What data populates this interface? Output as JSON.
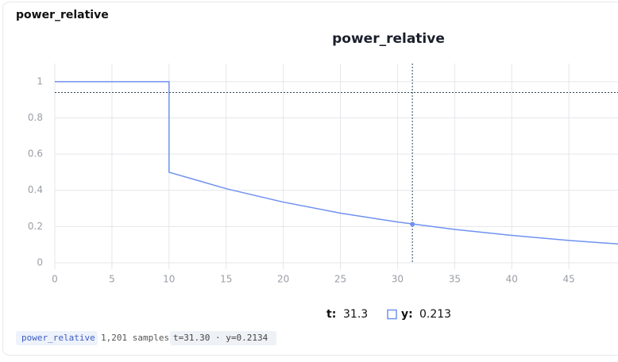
{
  "panel_title": "power_relative",
  "chart_data": {
    "type": "line",
    "title": "power_relative",
    "x": [
      0,
      10,
      10,
      15,
      20,
      25,
      30,
      35,
      40,
      45,
      49.3
    ],
    "series": [
      {
        "name": "y",
        "color": "#7092f0",
        "values": [
          1,
          1,
          0.5,
          0.409,
          0.335,
          0.274,
          0.225,
          0.184,
          0.151,
          0.123,
          0.104
        ]
      }
    ],
    "xlim": [
      0,
      49.3
    ],
    "xticks": [
      0,
      5,
      10,
      15,
      20,
      25,
      30,
      35,
      40,
      45
    ],
    "ylim": [
      0,
      1.1
    ],
    "yticks": [
      0,
      0.2,
      0.4,
      0.6,
      0.8,
      1
    ],
    "grid": true,
    "cursor": {
      "x": 31.3,
      "y": 0.94
    },
    "point": {
      "x": 31.3,
      "y": 0.213
    }
  },
  "readout": {
    "t_label": "t:",
    "t_value": "31.3",
    "y_label": "y:",
    "y_value": "0.213"
  },
  "footer": {
    "series_chip": "power_relative",
    "samples": "1,201 samples",
    "cursor_chip": "t=31.30 · y=0.2134"
  }
}
